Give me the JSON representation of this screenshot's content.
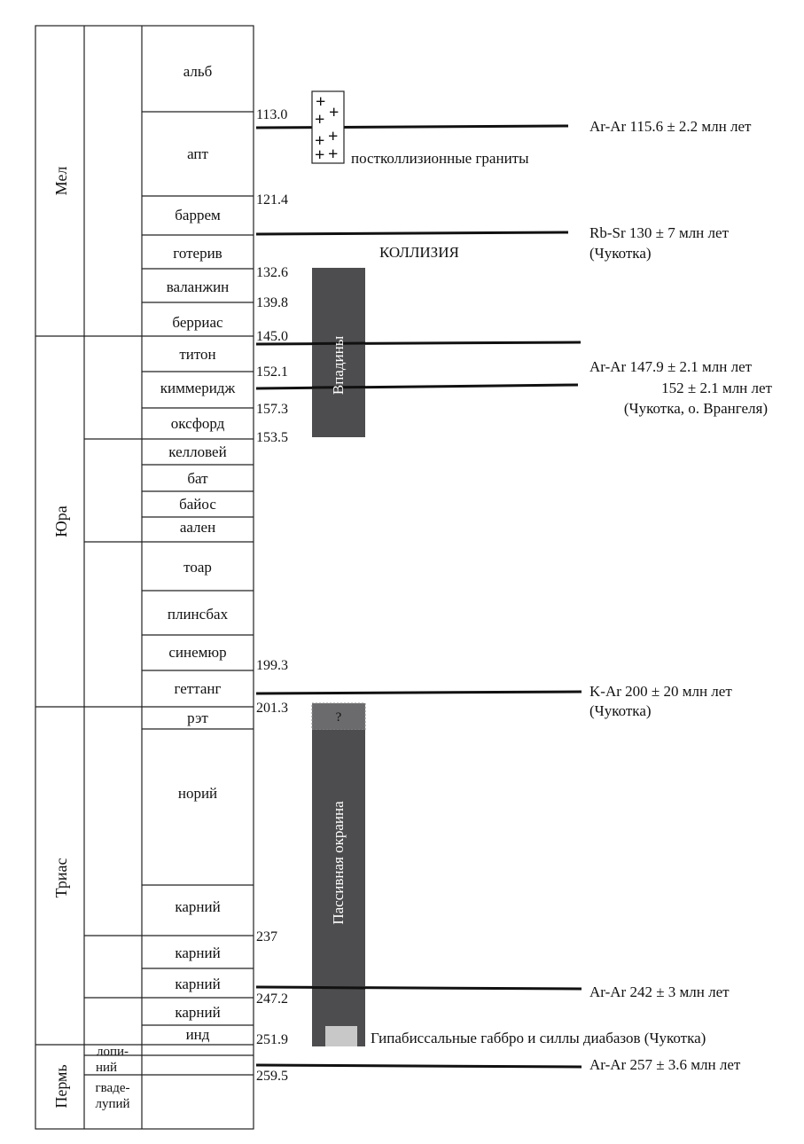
{
  "periods": [
    "Мел",
    "Юра",
    "Триас",
    "Пермь"
  ],
  "stages": [
    "альб",
    "апт",
    "баррем",
    "готерив",
    "валанжин",
    "берриас",
    "титон",
    "киммеридж",
    "оксфорд",
    "келловей",
    "бат",
    "байос",
    "аален",
    "тоар",
    "плинсбах",
    "синемюр",
    "геттанг",
    "рэт",
    "норий",
    "карний",
    "карний",
    "карний",
    "карний",
    "инд"
  ],
  "perm_stages": [
    "лопи-",
    "ний",
    "гваде-",
    "лупий"
  ],
  "ages": [
    "113.0",
    "121.4",
    "132.6",
    "139.8",
    "145.0",
    "152.1",
    "157.3",
    "153.5",
    "199.3",
    "201.3",
    "237",
    "247.2",
    "251.9",
    "259.5"
  ],
  "dates": {
    "d1": "Ar-Ar 115.6 ± 2.2 млн лет",
    "d2a": "Rb-Sr 130 ± 7 млн лет",
    "d2b": "(Чукотка)",
    "d3a": "Ar-Ar 147.9 ± 2.1 млн лет",
    "d3b": "152 ± 2.1 млн лет",
    "d3c": "(Чукотка, о. Врангеля)",
    "d4a": "K-Ar 200 ± 20 млн лет",
    "d4b": "(Чукотка)",
    "d5": "Ar-Ar 242 ± 3 млн лет",
    "d6": "Ar-Ar 257 ± 3.6 млн лет"
  },
  "labels": {
    "granites": "постколлизионные граниты",
    "collision": "КОЛЛИЗИЯ",
    "depressions": "Впадины",
    "passive_margin": "Пассивная окраина",
    "question": "?",
    "gabbro": "Гипабиссальные габбро и силлы диабазов (Чукотка)"
  },
  "colors": {
    "bar": "#4d4d4f",
    "bar_question": "#6b6b6d",
    "gabbro": "#c8c8c8",
    "line": "#111111"
  }
}
